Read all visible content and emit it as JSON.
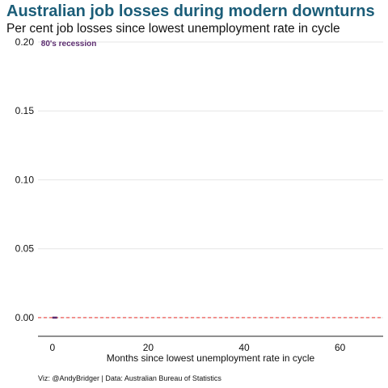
{
  "chart_data": {
    "type": "line",
    "title": "Australian job losses during modern downturns",
    "subtitle": "Per cent job losses since lowest unemployment rate in cycle",
    "xlabel": "Months since lowest unemployment rate in cycle",
    "ylabel": "",
    "caption": "Viz: @AndyBridger | Data: Australian Bureau of Statistics",
    "xlim": [
      -3,
      69
    ],
    "ylim": [
      -0.01,
      0.2
    ],
    "x_ticks": [
      0,
      20,
      40,
      60
    ],
    "y_ticks": [
      0.0,
      0.05,
      0.1,
      0.15,
      0.2
    ],
    "y_tick_labels": [
      "0.00",
      "0.05",
      "0.10",
      "0.15",
      "0.20"
    ],
    "grid": true,
    "reference_line": {
      "y": 0,
      "color": "#e8413c",
      "style": "dashed"
    },
    "series": [
      {
        "name": "80's recession",
        "color": "#5b2c6f",
        "x": [
          0,
          1
        ],
        "y": [
          0,
          0
        ]
      }
    ],
    "annotations": [
      {
        "text": "80's recession",
        "x": 0,
        "y": 0.2,
        "color": "#5b2c6f"
      }
    ]
  }
}
